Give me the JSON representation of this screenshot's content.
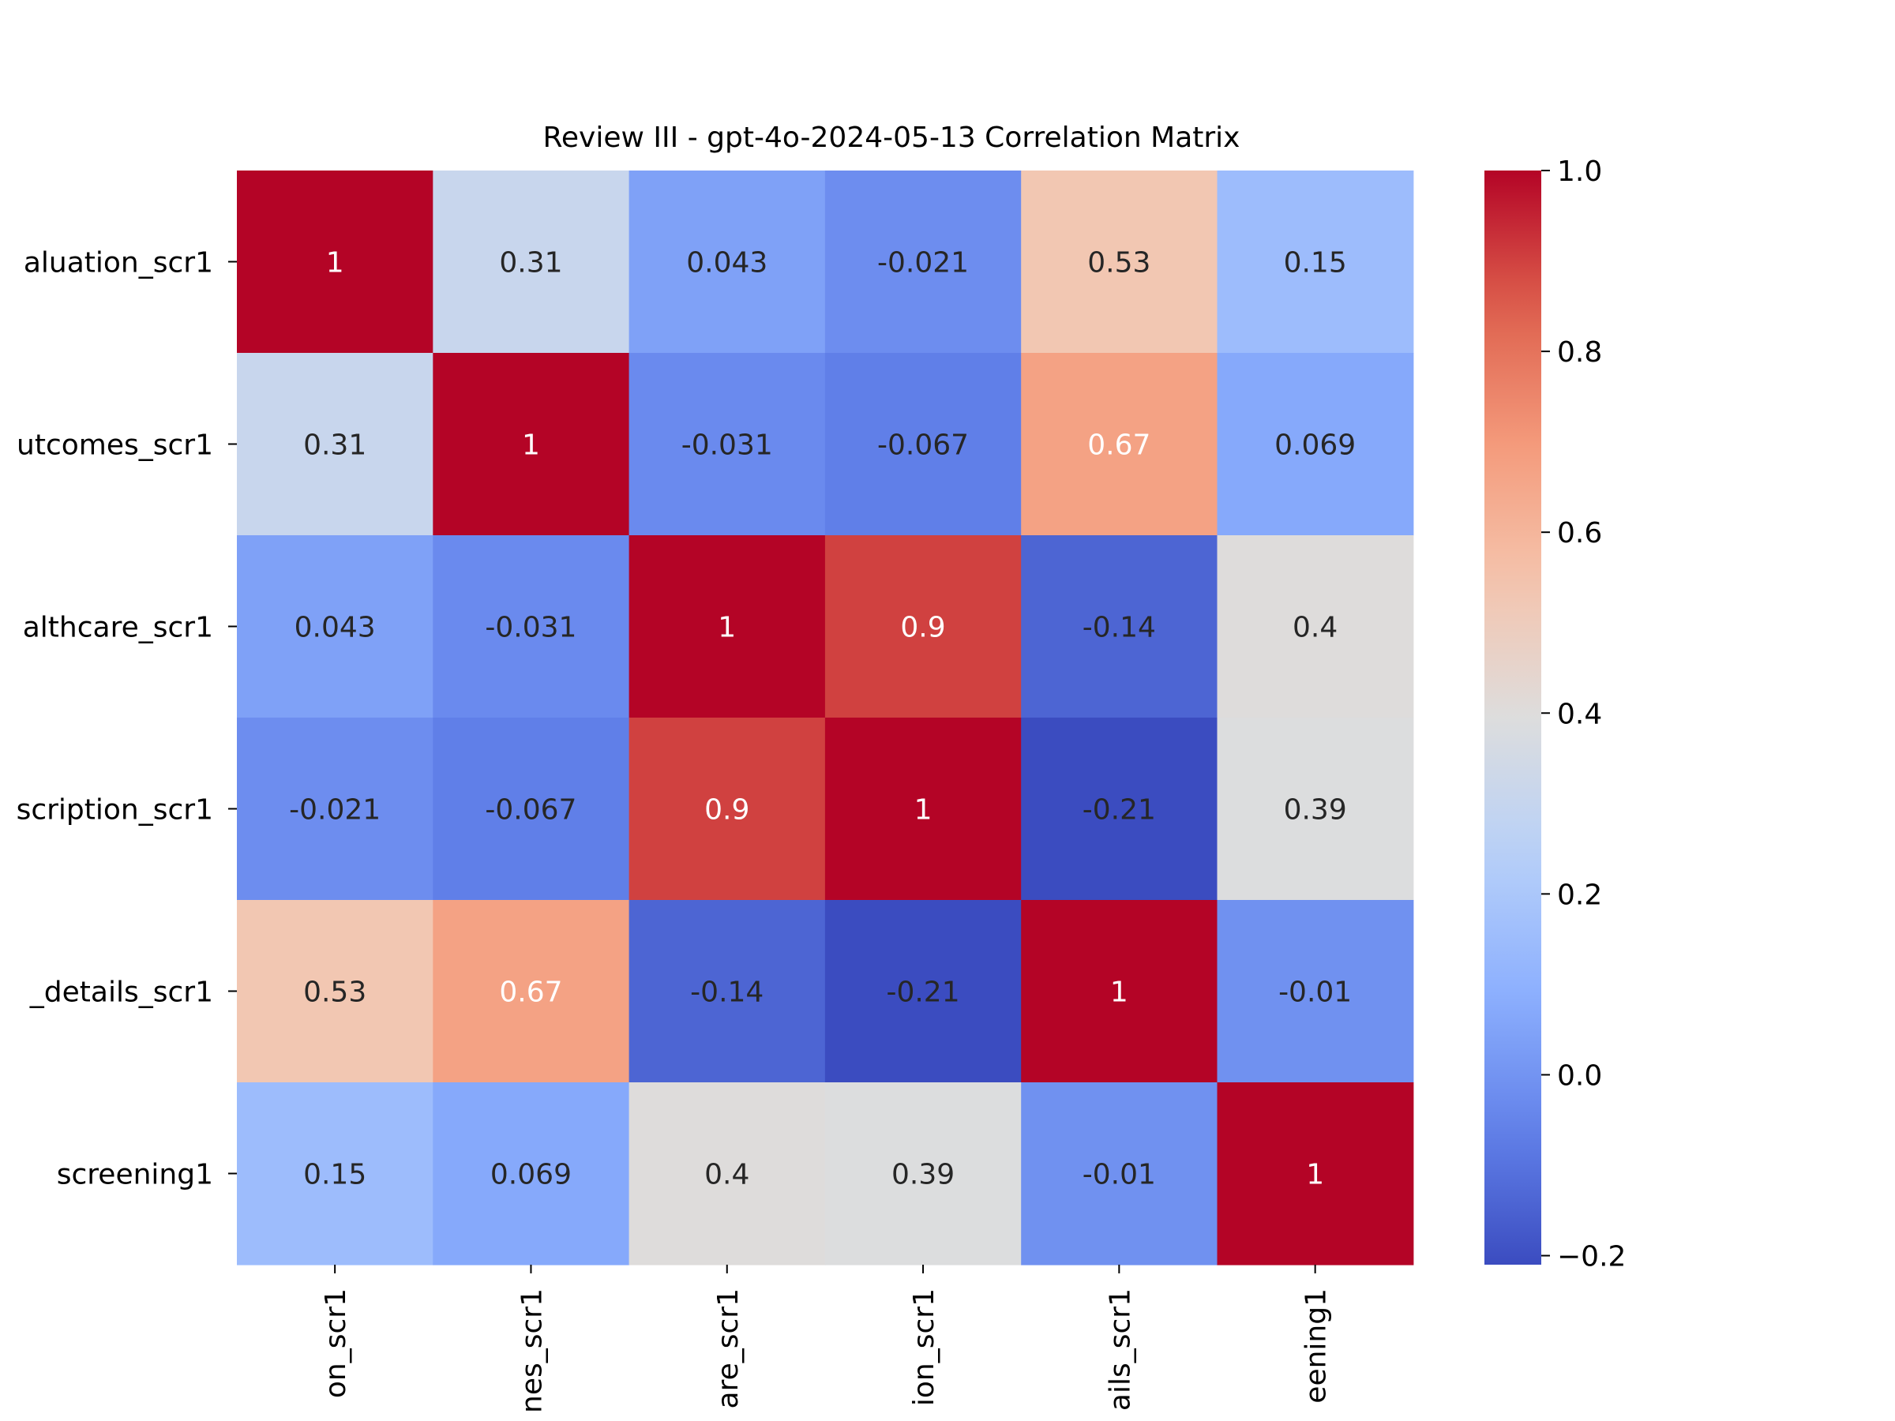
{
  "chart_data": {
    "type": "heatmap",
    "title": "Review III - gpt-4o-2024-05-13 Correlation Matrix",
    "row_labels": [
      "aluation_scr1",
      "utcomes_scr1",
      "althcare_scr1",
      "scription_scr1",
      "_details_scr1",
      "screening1"
    ],
    "col_labels": [
      "on_scr1",
      "nes_scr1",
      "are_scr1",
      "ion_scr1",
      "ails_scr1",
      "eening1"
    ],
    "values": [
      [
        1,
        0.31,
        0.043,
        -0.021,
        0.53,
        0.15
      ],
      [
        0.31,
        1,
        -0.031,
        -0.067,
        0.67,
        0.069
      ],
      [
        0.043,
        -0.031,
        1,
        0.9,
        -0.14,
        0.4
      ],
      [
        -0.021,
        -0.067,
        0.9,
        1,
        -0.21,
        0.39
      ],
      [
        0.53,
        0.67,
        -0.14,
        -0.21,
        1,
        -0.01
      ],
      [
        0.15,
        0.069,
        0.4,
        0.39,
        -0.01,
        1
      ]
    ],
    "annotations": [
      [
        "1",
        "0.31",
        "0.043",
        "-0.021",
        "0.53",
        "0.15"
      ],
      [
        "0.31",
        "1",
        "-0.031",
        "-0.067",
        "0.67",
        "0.069"
      ],
      [
        "0.043",
        "-0.031",
        "1",
        "0.9",
        "-0.14",
        "0.4"
      ],
      [
        "-0.021",
        "-0.067",
        "0.9",
        "1",
        "-0.21",
        "0.39"
      ],
      [
        "0.53",
        "0.67",
        "-0.14",
        "-0.21",
        "1",
        "-0.01"
      ],
      [
        "0.15",
        "0.069",
        "0.4",
        "0.39",
        "-0.01",
        "1"
      ]
    ],
    "colormap": "coolwarm",
    "colorbar": {
      "range": [
        -0.21,
        1
      ],
      "ticks": [
        -0.2,
        0.0,
        0.2,
        0.4,
        0.6,
        0.8,
        1.0
      ],
      "tick_labels": [
        "−0.2",
        "0.0",
        "0.2",
        "0.4",
        "0.6",
        "0.8",
        "1.0"
      ]
    },
    "colors": {
      "background": "#ffffff",
      "text_dark": "#262626",
      "text_light": "#ffffff"
    }
  }
}
